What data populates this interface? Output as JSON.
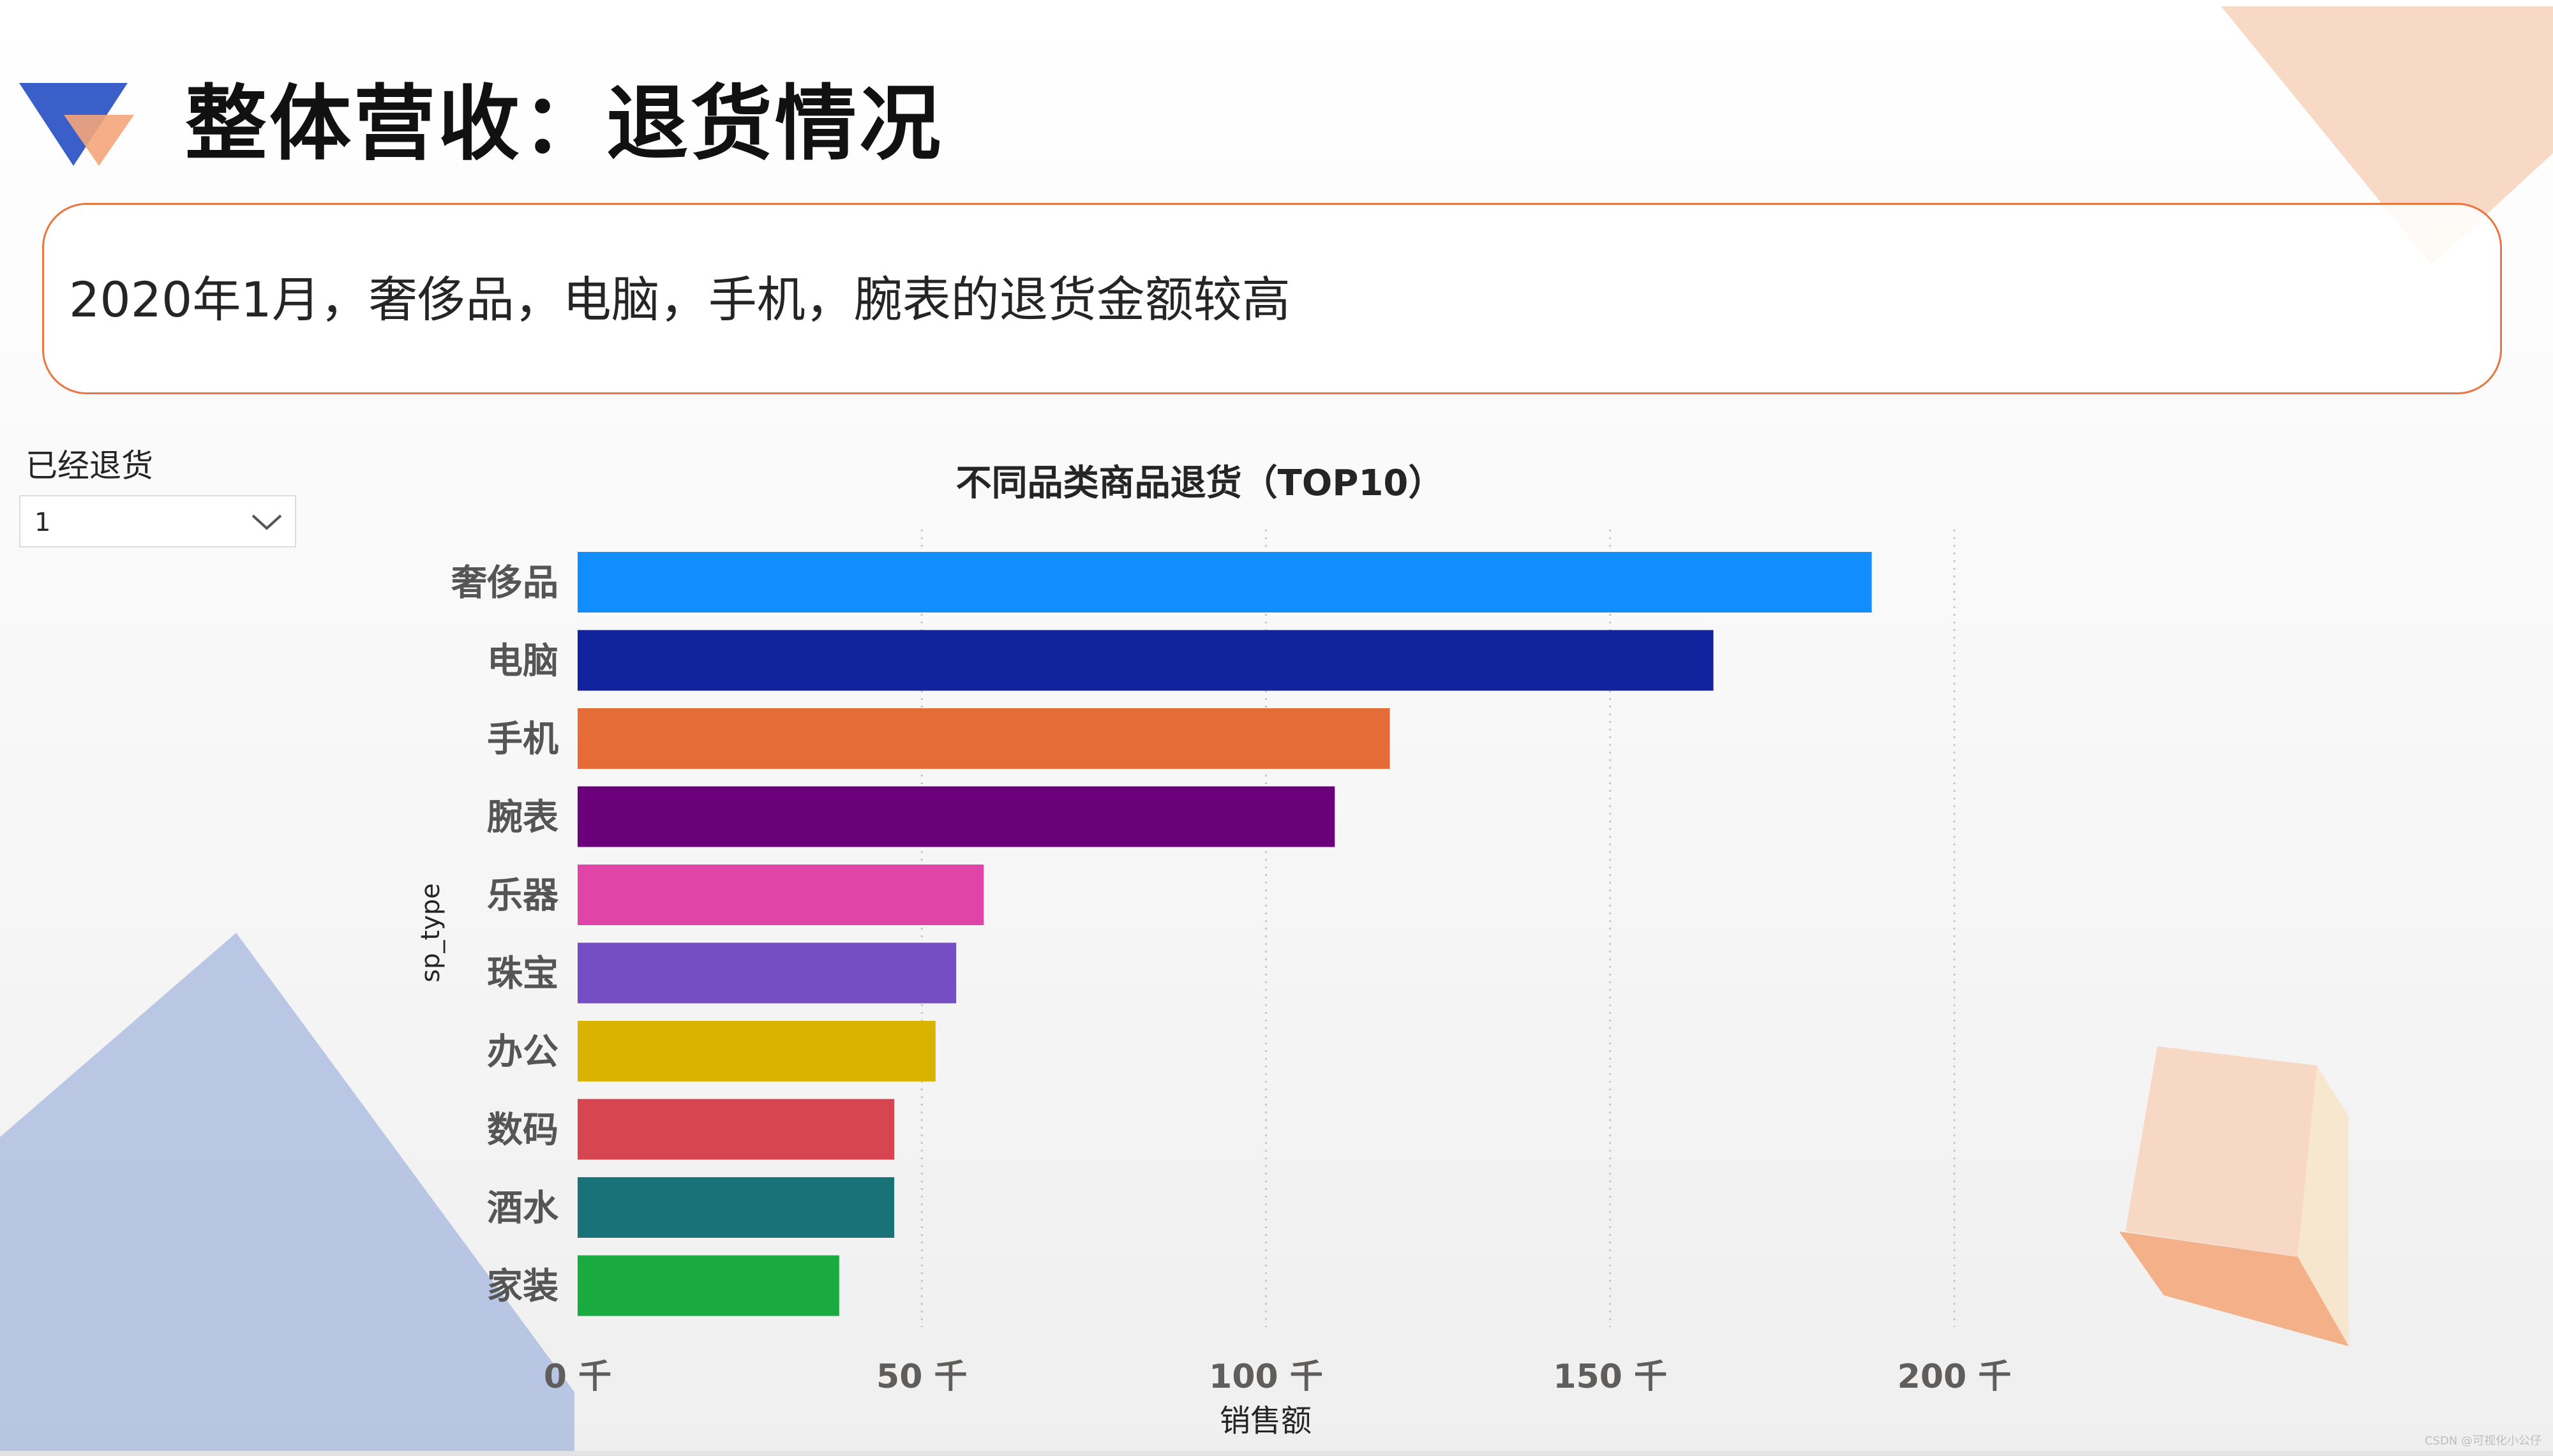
{
  "page": {
    "title": "整体营收：退货情况",
    "summary": "2020年1月，奢侈品，电脑，手机，腕表的退货金额较高",
    "watermark": "CSDN @可视化小公仔"
  },
  "filter": {
    "label": "已经退货",
    "value": "1",
    "icon": "chevron-down-icon"
  },
  "colors": {
    "accent_orange": "#e8773f",
    "logo_blue": "#3a5fc8",
    "logo_orange": "#f4a57a"
  },
  "chart_data": {
    "type": "bar",
    "orientation": "horizontal",
    "title": "不同品类商品退货（TOP10）",
    "xlabel": "销售额",
    "ylabel": "sp_type",
    "categories": [
      "奢侈品",
      "电脑",
      "手机",
      "腕表",
      "乐器",
      "珠宝",
      "办公",
      "数码",
      "酒水",
      "家装"
    ],
    "values": [
      188,
      165,
      118,
      110,
      59,
      55,
      52,
      46,
      46,
      38
    ],
    "value_unit": "千",
    "colors": [
      "#118dff",
      "#12239e",
      "#e66c37",
      "#6b007b",
      "#e044a7",
      "#744ec2",
      "#d9b300",
      "#d64550",
      "#197278",
      "#1aab40"
    ],
    "xlim": [
      0,
      200
    ],
    "xticks": [
      "0 千",
      "50 千",
      "100 千",
      "150 千",
      "200 千"
    ],
    "grid": true
  }
}
